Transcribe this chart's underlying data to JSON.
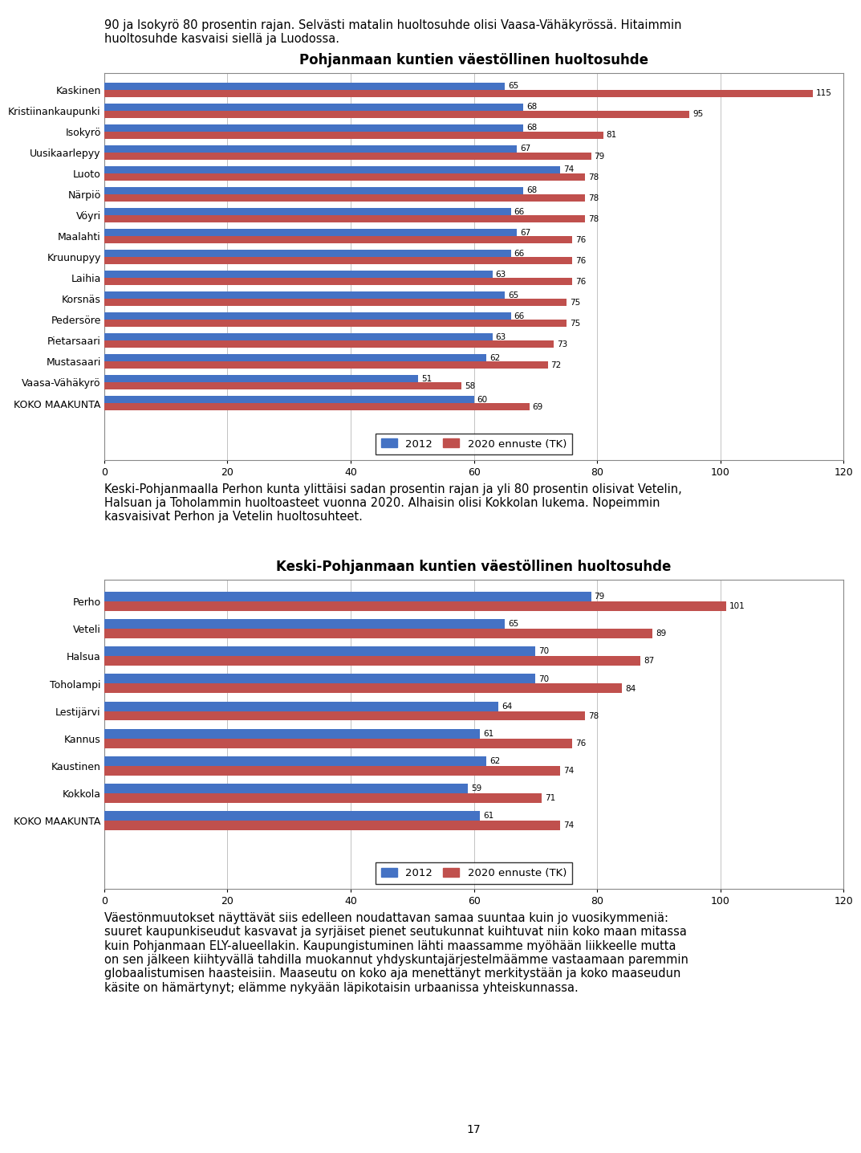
{
  "chart1": {
    "title": "Pohjanmaan kuntien väestöllinen huoltosuhde",
    "categories": [
      "Kaskinen",
      "Kristiinankaupunki",
      "Isokyrö",
      "Uusikaarlepyy",
      "Luoto",
      "Närpiö",
      "Vöyri",
      "Maalahti",
      "Kruunupyy",
      "Laihia",
      "Korsnäs",
      "Pedersöre",
      "Pietarsaari",
      "Mustasaari",
      "Vaasa-Vähäkyrö",
      "KOKO MAAKUNTA"
    ],
    "values_2012": [
      65,
      68,
      68,
      67,
      74,
      68,
      66,
      67,
      66,
      63,
      65,
      66,
      63,
      62,
      51,
      60
    ],
    "values_2020": [
      115,
      95,
      81,
      79,
      78,
      78,
      78,
      76,
      76,
      76,
      75,
      75,
      73,
      72,
      58,
      69
    ],
    "xlim": [
      0,
      120
    ],
    "xticks": [
      0,
      20,
      40,
      60,
      80,
      100,
      120
    ]
  },
  "chart2": {
    "title": "Keski-Pohjanmaan kuntien väestöllinen huoltosuhde",
    "categories": [
      "Perho",
      "Veteli",
      "Halsua",
      "Toholampi",
      "Lestijärvi",
      "Kannus",
      "Kaustinen",
      "Kokkola",
      "KOKO MAAKUNTA"
    ],
    "values_2012": [
      79,
      65,
      70,
      70,
      64,
      61,
      62,
      59,
      61
    ],
    "values_2020": [
      101,
      89,
      87,
      84,
      78,
      76,
      74,
      71,
      74
    ],
    "xlim": [
      0,
      120
    ],
    "xticks": [
      0,
      20,
      40,
      60,
      80,
      100,
      120
    ]
  },
  "color_2012": "#4472C4",
  "color_2020": "#C0504D",
  "legend_2012": "2012",
  "legend_2020": "2020 ennuste (TK)",
  "bar_height": 0.35,
  "text_intro": "90 ja Isokyrö 80 prosentin rajan. Selvästi matalin huoltosuhde olisi Vaasa-Vähäkyrössä. Hitaimmin\nhuoltosuhde kasvaisi siellä ja Luodossa.",
  "text_middle": "Keski-Pohjanmaalla Perhon kunta ylittäisi sadan prosentin rajan ja yli 80 prosentin olisivat Vetelin,\nHalsuan ja Toholammin huoltoasteet vuonna 2020. Alhaisin olisi Kokkolan lukema. Nopeimmin\nkasvaisivat Perhon ja Vetelin huoltosuhteet.",
  "text_outro": "Väestönmuutokset näyttävät siis edelleen noudattavan samaa suuntaa kuin jo vuosikymmeniä:\nsuuret kaupunkiseudut kasvavat ja syrjäiset pienet seutukunnat kuihtuvat niin koko maan mitassa\nkuin Pohjanmaan ELY-alueellakin. Kaupungistuminen lähti maassamme myöhään liikkeelle mutta\non sen jälkeen kiihtyvällä tahdilla muokannut yhdyskuntajärjestelmäämme vastaamaan paremmin\nglobaalistumisen haasteisiin. Maaseutu on koko aja menettänyt merkitystään ja koko maaseudun\nkäsite on hämärtynyt; elämme nykyään läpikotaisin urbaanissa yhteiskunnassa.",
  "page_number": "17",
  "background_color": "#FFFFFF",
  "chart_bg": "#FFFFFF",
  "border_color": "#000000"
}
